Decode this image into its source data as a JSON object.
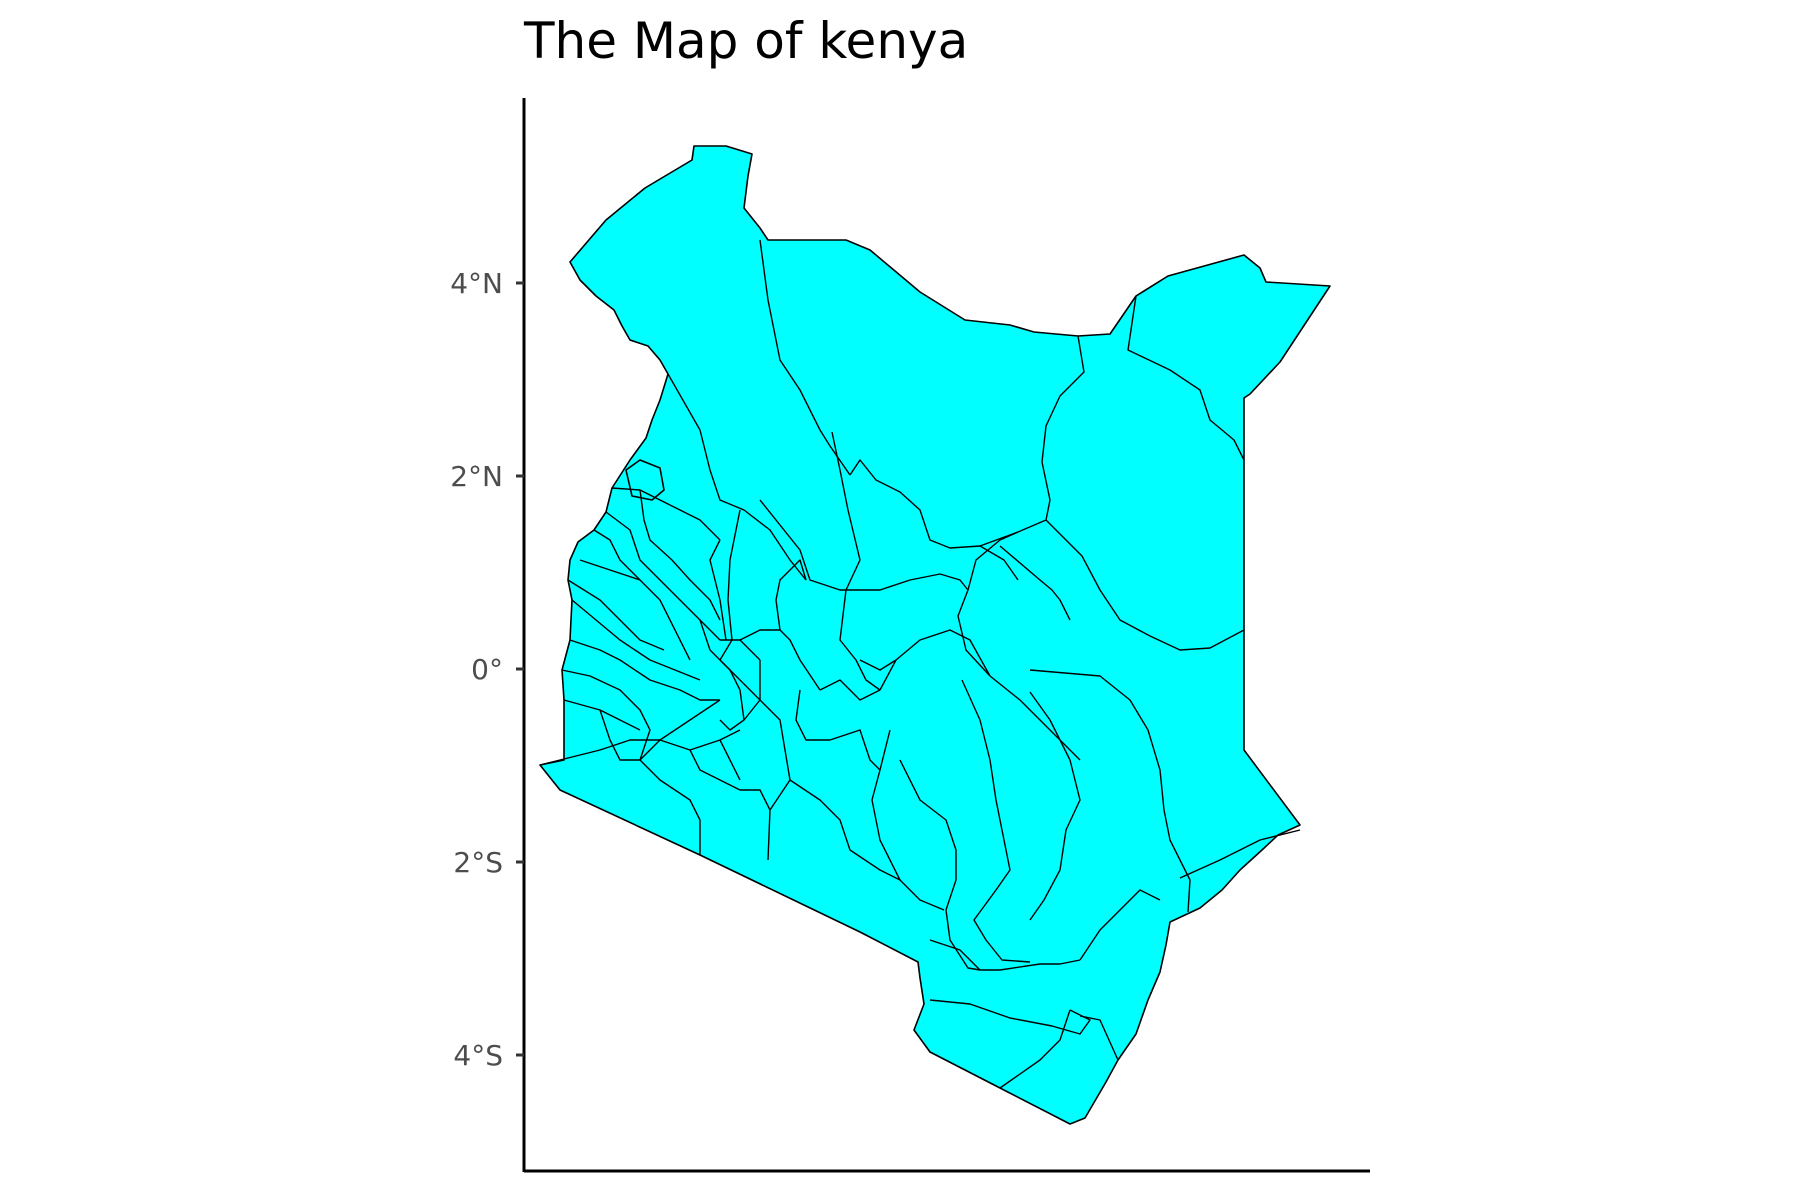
{
  "title": "The Map of kenya",
  "map": {
    "fill_color": "#00ffff",
    "border_color": "#000000",
    "y_axis_ticks": [
      {
        "lat": 4,
        "label": "4°N"
      },
      {
        "lat": 2,
        "label": "2°N"
      },
      {
        "lat": 0,
        "label": "0°"
      },
      {
        "lat": -2,
        "label": "2°S"
      },
      {
        "lat": -4,
        "label": "4°S"
      }
    ],
    "x_axis_ticks": [],
    "grid": false
  }
}
